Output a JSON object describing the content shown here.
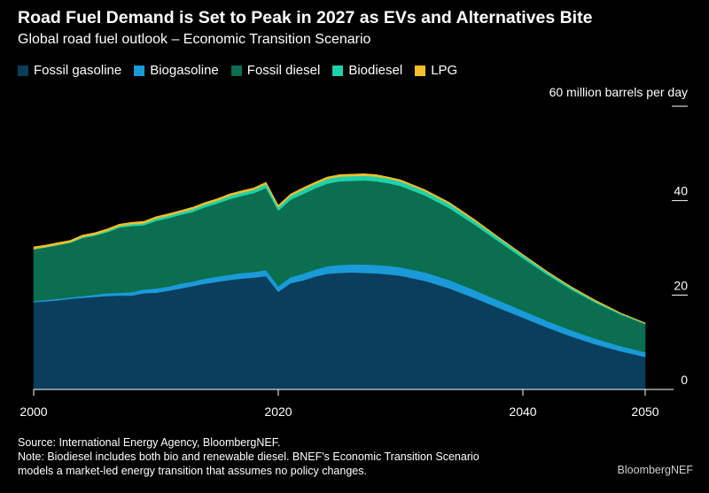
{
  "title": "Road Fuel Demand is Set to Peak in 2027 as EVs and Alternatives Bite",
  "subtitle": "Global road fuel outlook – Economic Transition Scenario",
  "unit_label": "60 million barrels per day",
  "source_line": "Source: International Energy Agency, BloombergNEF.",
  "note_line_1": "Note: Biodiesel includes both bio and renewable diesel. BNEF's Economic Transition Scenario",
  "note_line_2": "models a market-led energy transition that assumes no policy changes.",
  "watermark": "BloombergNEF",
  "chart_data": {
    "type": "area",
    "stacked": true,
    "x": [
      2000,
      2001,
      2002,
      2003,
      2004,
      2005,
      2006,
      2007,
      2008,
      2009,
      2010,
      2011,
      2012,
      2013,
      2014,
      2015,
      2016,
      2017,
      2018,
      2019,
      2020,
      2021,
      2022,
      2023,
      2024,
      2025,
      2026,
      2027,
      2028,
      2029,
      2030,
      2032,
      2034,
      2036,
      2038,
      2040,
      2042,
      2044,
      2046,
      2048,
      2050
    ],
    "series": [
      {
        "name": "Fossil gasoline",
        "color": "#0b3d5c",
        "values": [
          18.5,
          18.7,
          18.9,
          19.2,
          19.4,
          19.6,
          19.8,
          19.9,
          19.9,
          20.4,
          20.5,
          20.9,
          21.4,
          21.9,
          22.4,
          22.8,
          23.2,
          23.5,
          23.7,
          24.0,
          20.7,
          22.5,
          23.1,
          23.9,
          24.5,
          24.7,
          24.8,
          24.7,
          24.6,
          24.4,
          24.1,
          23.0,
          21.4,
          19.4,
          17.3,
          15.2,
          13.1,
          11.2,
          9.5,
          8.1,
          6.9
        ]
      },
      {
        "name": "Biogasoline",
        "color": "#1a9ad8",
        "values": [
          0.2,
          0.3,
          0.3,
          0.3,
          0.4,
          0.5,
          0.6,
          0.6,
          0.7,
          0.8,
          0.9,
          0.9,
          1.0,
          1.0,
          1.1,
          1.1,
          1.1,
          1.2,
          1.2,
          1.3,
          1.2,
          1.3,
          1.4,
          1.5,
          1.6,
          1.7,
          1.7,
          1.8,
          1.8,
          1.8,
          1.8,
          1.8,
          1.8,
          1.7,
          1.6,
          1.5,
          1.4,
          1.3,
          1.2,
          1.1,
          1.0
        ]
      },
      {
        "name": "Fossil diesel",
        "color": "#0a6e4f",
        "values": [
          11.0,
          11.1,
          11.4,
          11.6,
          12.3,
          12.5,
          12.9,
          13.8,
          14.0,
          13.6,
          14.3,
          14.5,
          14.6,
          14.7,
          15.1,
          15.5,
          16.0,
          16.3,
          16.7,
          17.4,
          16.0,
          16.4,
          16.9,
          17.2,
          17.5,
          17.7,
          17.7,
          17.8,
          17.7,
          17.5,
          17.2,
          16.3,
          15.2,
          13.9,
          12.5,
          11.1,
          9.8,
          8.6,
          7.6,
          6.7,
          6.0
        ]
      },
      {
        "name": "Biodiesel",
        "color": "#1fd1a9",
        "values": [
          0.1,
          0.1,
          0.1,
          0.1,
          0.2,
          0.2,
          0.3,
          0.3,
          0.4,
          0.4,
          0.5,
          0.5,
          0.5,
          0.6,
          0.6,
          0.6,
          0.7,
          0.7,
          0.7,
          0.8,
          0.7,
          0.8,
          0.9,
          0.9,
          1.0,
          1.0,
          1.0,
          1.0,
          1.0,
          1.0,
          1.0,
          0.9,
          0.9,
          0.8,
          0.7,
          0.6,
          0.5,
          0.4,
          0.3,
          0.2,
          0.1
        ]
      },
      {
        "name": "LPG",
        "color": "#f2be2a",
        "values": [
          0.4,
          0.4,
          0.4,
          0.4,
          0.4,
          0.4,
          0.4,
          0.4,
          0.4,
          0.4,
          0.4,
          0.4,
          0.4,
          0.4,
          0.4,
          0.4,
          0.4,
          0.4,
          0.4,
          0.4,
          0.4,
          0.4,
          0.4,
          0.4,
          0.4,
          0.4,
          0.4,
          0.4,
          0.4,
          0.3,
          0.3,
          0.3,
          0.3,
          0.3,
          0.2,
          0.2,
          0.2,
          0.2,
          0.2,
          0.1,
          0.1
        ]
      }
    ],
    "x_ticks": [
      2000,
      2020,
      2040,
      2050
    ],
    "y_ticks": [
      0,
      20,
      40,
      60
    ],
    "xlim": [
      2000,
      2050
    ],
    "ylim": [
      0,
      60
    ],
    "grid": false,
    "legend_position": "top-left"
  }
}
